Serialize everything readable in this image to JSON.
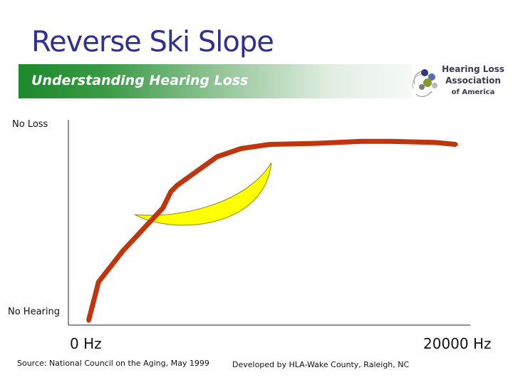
{
  "slide": {
    "title": "Reverse Ski Slope",
    "banner_text": "Understanding Hearing Loss",
    "logo": {
      "line1": "Hearing Loss",
      "line2": "Association",
      "line3": "of America"
    },
    "source_note": "Source: National Council on the Aging, May 1999",
    "credit": "Developed by HLA-Wake County, Raleigh, NC"
  },
  "colors": {
    "title": "#2e3192",
    "curve": "#c0360c",
    "highlight": "#ffff00",
    "banner_green": "#1c8a2b"
  },
  "chart_data": {
    "type": "line",
    "title": "",
    "xlabel": "",
    "ylabel": "",
    "x_tick_labels": [
      "0 Hz",
      "20000 Hz"
    ],
    "y_tick_labels": [
      "No Hearing",
      "No Loss"
    ],
    "xlim": [
      0,
      20000
    ],
    "ylim": [
      0,
      100
    ],
    "grid": false,
    "series": [
      {
        "name": "Reverse ski slope hearing loss",
        "x": [
          1000,
          1500,
          2700,
          4700,
          5100,
          5400,
          7400,
          8600,
          10000,
          12300,
          14600,
          16000,
          18200,
          19300
        ],
        "y": [
          2,
          21,
          36,
          57,
          65,
          68,
          82,
          86,
          88,
          88.5,
          89.5,
          89.5,
          89,
          88
        ]
      }
    ],
    "annotations": [
      {
        "name": "Speech banana",
        "shape": "crescent",
        "x_range": [
          3300,
          10100
        ],
        "y_range": [
          44,
          79
        ]
      }
    ]
  }
}
